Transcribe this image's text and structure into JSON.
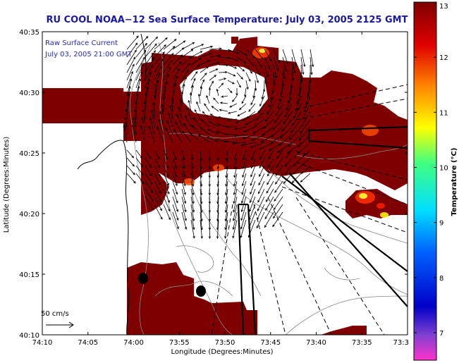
{
  "title": "RU COOL  NOAA−12  Sea Surface Temperature:  July 03, 2005 2125 GMT",
  "inset": {
    "line1": "Raw Surface Current",
    "line2": "July 03, 2005 21:00 GMT"
  },
  "scale_label": "50 cm/s",
  "axes": {
    "xlabel": "Longitude (Degrees:Minutes)",
    "ylabel": "Latitude (Degrees:Minutes)",
    "xticks": [
      "74:10",
      "74:05",
      "74:00",
      "73:55",
      "73:50",
      "73:45",
      "73:40",
      "73:35",
      "73:3"
    ],
    "yticks": [
      "40:35",
      "40:30",
      "40:25",
      "40:20",
      "40:15",
      "40:10"
    ]
  },
  "colorbar": {
    "label": "Temperature (°C)",
    "ticks": [
      "13",
      "12",
      "11",
      "10",
      "9",
      "8",
      "7"
    ],
    "range": [
      6.5,
      13
    ]
  },
  "colors": {
    "title": "#1a1aa0",
    "sst_warm": "#7f0000",
    "land": "#ffffff",
    "contour": "#888888"
  }
}
